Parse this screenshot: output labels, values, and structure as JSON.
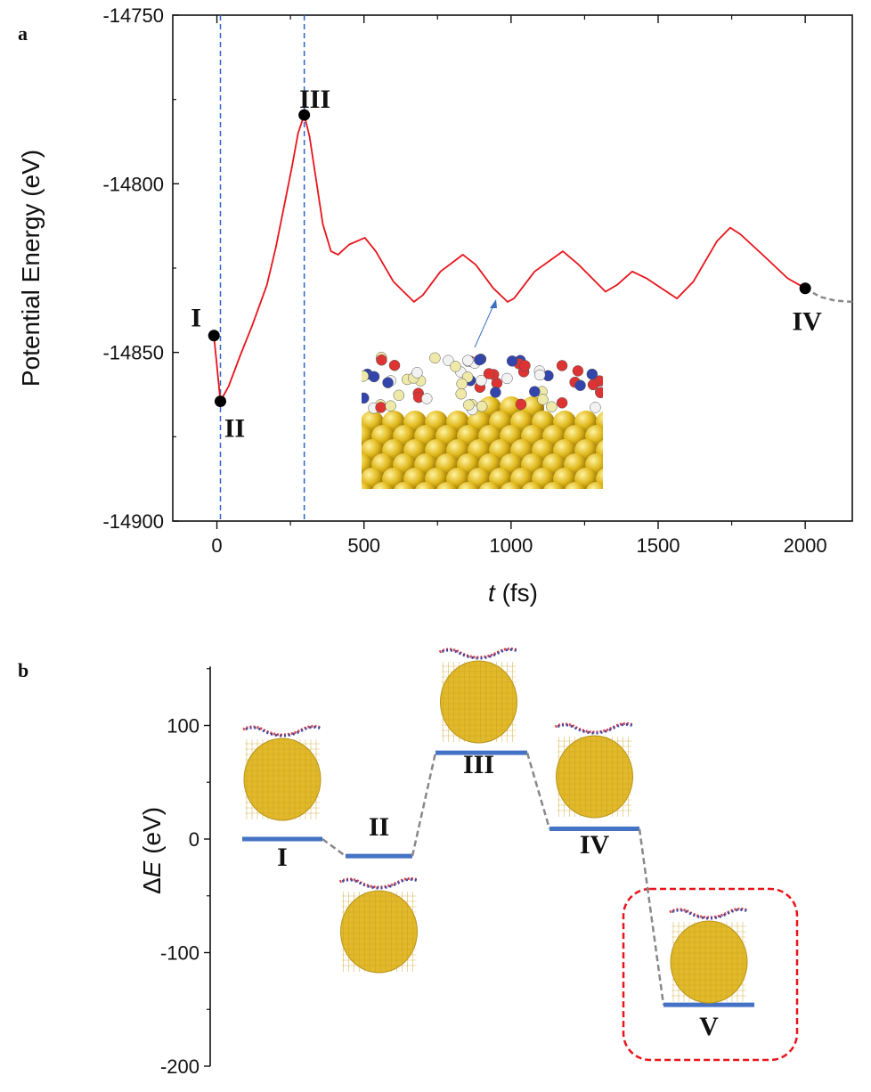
{
  "chart_data": [
    {
      "panel": "a",
      "type": "line",
      "xlabel": "t (fs)",
      "xlabel_italic": "t",
      "xlabel_unit": "(fs)",
      "ylabel": "Potential Energy (eV)",
      "xlim": [
        -150,
        2160
      ],
      "ylim": [
        -14900,
        -14750
      ],
      "xticks": [
        0,
        500,
        1000,
        1500,
        2000
      ],
      "yticks": [
        -14750,
        -14800,
        -14850,
        -14900
      ],
      "xtick_labels": [
        "0",
        "500",
        "1000",
        "1500",
        "2000"
      ],
      "ytick_labels": [
        "-14750",
        "-14800",
        "-14850",
        "-14900"
      ],
      "grid": false,
      "vlines": [
        12,
        297
      ],
      "series": [
        {
          "name": "potential energy",
          "color": "#e8141b",
          "x": [
            -10,
            12,
            40,
            79,
            120,
            170,
            200,
            230,
            255,
            276,
            297,
            315,
            336,
            360,
            388,
            412,
            450,
            503,
            540,
            600,
            670,
            700,
            760,
            836,
            880,
            940,
            988,
            1010,
            1080,
            1176,
            1230,
            1321,
            1360,
            1412,
            1460,
            1564,
            1620,
            1700,
            1745,
            1780,
            1867,
            1940,
            2000
          ],
          "y": [
            -14845,
            -14864.5,
            -14860,
            -14851,
            -14842,
            -14830,
            -14819,
            -14806,
            -14795,
            -14785,
            -14779.6,
            -14786,
            -14798,
            -14812,
            -14820,
            -14821,
            -14818,
            -14816,
            -14820,
            -14829,
            -14835,
            -14833,
            -14826,
            -14821,
            -14824,
            -14831,
            -14835,
            -14834,
            -14826,
            -14820,
            -14824,
            -14832,
            -14830,
            -14826,
            -14828,
            -14834,
            -14829,
            -14817,
            -14813,
            -14815,
            -14822,
            -14828,
            -14831
          ]
        },
        {
          "name": "extension",
          "color": "#888888",
          "dashed": true,
          "x": [
            2000,
            2050,
            2100,
            2160
          ],
          "y": [
            -14831,
            -14833.5,
            -14834.6,
            -14835
          ]
        }
      ],
      "markers": [
        {
          "label": "I",
          "x": -10,
          "y": -14845
        },
        {
          "label": "II",
          "x": 12,
          "y": -14864.5
        },
        {
          "label": "III",
          "x": 297,
          "y": -14779.6
        },
        {
          "label": "IV",
          "x": 2000,
          "y": -14831
        }
      ]
    },
    {
      "panel": "b",
      "type": "energy-level diagram",
      "ylabel": "ΔE (eV)",
      "ylabel_italic": "E",
      "ylim": [
        -200,
        152
      ],
      "yticks": [
        100,
        0,
        -100,
        -200
      ],
      "ytick_labels": [
        "100",
        "0",
        "-100",
        "-200"
      ],
      "levels": [
        {
          "label": "I",
          "value": 0
        },
        {
          "label": "II",
          "value": -15
        },
        {
          "label": "III",
          "value": 76
        },
        {
          "label": "IV",
          "value": 9
        },
        {
          "label": "V",
          "value": -146
        }
      ],
      "level_color": "#4472c4",
      "connector_color": "#888888",
      "highlight": {
        "label": "V",
        "color": "#e8141b"
      }
    }
  ],
  "panels": {
    "a": "a",
    "b": "b"
  }
}
